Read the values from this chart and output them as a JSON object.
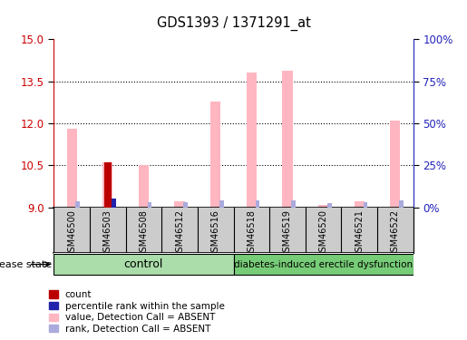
{
  "title": "GDS1393 / 1371291_at",
  "samples": [
    "GSM46500",
    "GSM46503",
    "GSM46508",
    "GSM46512",
    "GSM46516",
    "GSM46518",
    "GSM46519",
    "GSM46520",
    "GSM46521",
    "GSM46522"
  ],
  "value_absent": [
    11.82,
    10.62,
    10.5,
    9.22,
    12.78,
    13.82,
    13.88,
    9.08,
    9.22,
    12.1
  ],
  "rank_absent": [
    9.22,
    9.28,
    9.2,
    9.2,
    9.26,
    9.25,
    9.26,
    9.16,
    9.2,
    9.26
  ],
  "count_value": [
    null,
    10.62,
    null,
    null,
    null,
    null,
    null,
    null,
    null,
    null
  ],
  "count_rank": [
    null,
    9.32,
    null,
    null,
    null,
    null,
    null,
    null,
    null,
    null
  ],
  "ylim_left": [
    9,
    15
  ],
  "ylim_right": [
    0,
    100
  ],
  "yticks_left": [
    9,
    10.5,
    12,
    13.5,
    15
  ],
  "yticks_right": [
    0,
    25,
    50,
    75,
    100
  ],
  "ytick_labels_right": [
    "0%",
    "25%",
    "50%",
    "75%",
    "100%"
  ],
  "pink_color": "#FFB6C1",
  "rank_color": "#AAAADD",
  "red_color": "#BB0000",
  "blue_color": "#2222AA",
  "baseline": 9,
  "n_control": 5,
  "n_disease": 5,
  "control_label": "control",
  "disease_label": "diabetes-induced erectile dysfunction",
  "disease_state_label": "disease state",
  "left_axis_color": "#CC0000",
  "right_axis_color": "#2222BB",
  "bg_gray": "#CCCCCC",
  "bg_green_light": "#AADDAA",
  "bg_green_dark": "#77CC77"
}
